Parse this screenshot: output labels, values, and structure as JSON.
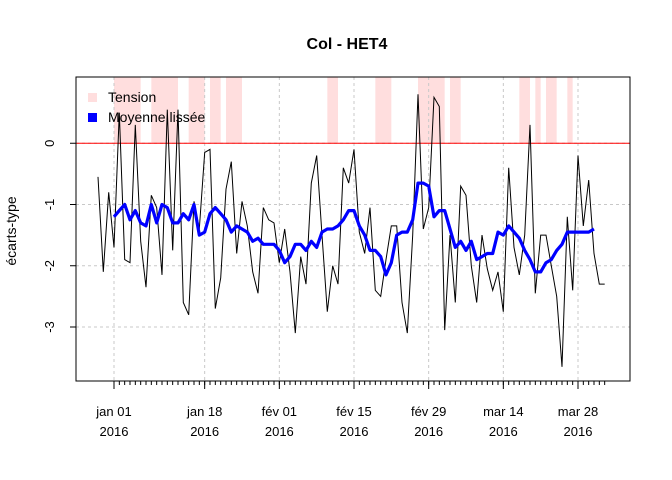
{
  "chart_data": {
    "type": "line",
    "title": "Col - HET4",
    "xlabel": "",
    "ylabel": "écarts-type",
    "x_start_date": "2015-12-29",
    "x_end_date": "2016-04-03",
    "ylim": [
      -3.8,
      1.0
    ],
    "yticks": [
      -3,
      -2,
      -1,
      0
    ],
    "xticks": [
      {
        "date": "2016-01-01",
        "line1": "jan 01",
        "line2": "2016"
      },
      {
        "date": "2016-01-18",
        "line1": "jan 18",
        "line2": "2016"
      },
      {
        "date": "2016-02-01",
        "line1": "fév 01",
        "line2": "2016"
      },
      {
        "date": "2016-02-15",
        "line1": "fév 15",
        "line2": "2016"
      },
      {
        "date": "2016-02-29",
        "line1": "fév 29",
        "line2": "2016"
      },
      {
        "date": "2016-03-14",
        "line1": "mar 14",
        "line2": "2016"
      },
      {
        "date": "2016-03-28",
        "line1": "mar 28",
        "line2": "2016"
      }
    ],
    "grid": true,
    "reference_line": {
      "y": 0,
      "color": "#ff0000"
    },
    "legend": {
      "position": "top-left",
      "entries": [
        {
          "label": "Tension",
          "color": "#ffdede"
        },
        {
          "label": "Moyenne lissée",
          "color": "#0000ff"
        }
      ]
    },
    "tension_intervals": [
      [
        "2016-01-01",
        "2016-01-06"
      ],
      [
        "2016-01-08",
        "2016-01-13"
      ],
      [
        "2016-01-15",
        "2016-01-18"
      ],
      [
        "2016-01-19",
        "2016-01-21"
      ],
      [
        "2016-01-22",
        "2016-01-25"
      ],
      [
        "2016-02-10",
        "2016-02-12"
      ],
      [
        "2016-02-19",
        "2016-02-22"
      ],
      [
        "2016-02-27",
        "2016-03-03"
      ],
      [
        "2016-03-04",
        "2016-03-06"
      ],
      [
        "2016-03-17",
        "2016-03-19"
      ],
      [
        "2016-03-20",
        "2016-03-21"
      ],
      [
        "2016-03-22",
        "2016-03-24"
      ],
      [
        "2016-03-26",
        "2016-03-27"
      ]
    ],
    "series": [
      {
        "key": "raw",
        "color": "#000000",
        "width": 1,
        "dates": [
          "2015-12-29",
          "2015-12-30",
          "2015-12-31",
          "2016-01-01",
          "2016-01-02",
          "2016-01-03",
          "2016-01-04",
          "2016-01-05",
          "2016-01-06",
          "2016-01-07",
          "2016-01-08",
          "2016-01-09",
          "2016-01-10",
          "2016-01-11",
          "2016-01-12",
          "2016-01-13",
          "2016-01-14",
          "2016-01-15",
          "2016-01-16",
          "2016-01-17",
          "2016-01-18",
          "2016-01-19",
          "2016-01-20",
          "2016-01-21",
          "2016-01-22",
          "2016-01-23",
          "2016-01-24",
          "2016-01-25",
          "2016-01-26",
          "2016-01-27",
          "2016-01-28",
          "2016-01-29",
          "2016-01-30",
          "2016-01-31",
          "2016-02-01",
          "2016-02-02",
          "2016-02-03",
          "2016-02-04",
          "2016-02-05",
          "2016-02-06",
          "2016-02-07",
          "2016-02-08",
          "2016-02-09",
          "2016-02-10",
          "2016-02-11",
          "2016-02-12",
          "2016-02-13",
          "2016-02-14",
          "2016-02-15",
          "2016-02-16",
          "2016-02-17",
          "2016-02-18",
          "2016-02-19",
          "2016-02-20",
          "2016-02-21",
          "2016-02-22",
          "2016-02-23",
          "2016-02-24",
          "2016-02-25",
          "2016-02-26",
          "2016-02-27",
          "2016-02-28",
          "2016-02-29",
          "2016-03-01",
          "2016-03-02",
          "2016-03-03",
          "2016-03-04",
          "2016-03-05",
          "2016-03-06",
          "2016-03-07",
          "2016-03-08",
          "2016-03-09",
          "2016-03-10",
          "2016-03-11",
          "2016-03-12",
          "2016-03-13",
          "2016-03-14",
          "2016-03-15",
          "2016-03-16",
          "2016-03-17",
          "2016-03-18",
          "2016-03-19",
          "2016-03-20",
          "2016-03-21",
          "2016-03-22",
          "2016-03-23",
          "2016-03-24",
          "2016-03-25",
          "2016-03-26",
          "2016-03-27",
          "2016-03-28",
          "2016-03-29",
          "2016-03-30",
          "2016-03-31",
          "2016-04-01",
          "2016-04-02"
        ],
        "values": [
          -0.55,
          -2.1,
          -0.8,
          -1.7,
          0.5,
          -1.9,
          -1.95,
          0.3,
          -1.6,
          -2.35,
          -0.85,
          -1.05,
          -2.15,
          0.55,
          -1.75,
          0.55,
          -2.6,
          -2.8,
          -0.95,
          -1.4,
          -0.15,
          -0.1,
          -2.7,
          -2.2,
          -0.75,
          -0.3,
          -1.8,
          -0.95,
          -1.35,
          -2.1,
          -2.45,
          -1.05,
          -1.25,
          -1.3,
          -1.95,
          -1.4,
          -2.1,
          -3.1,
          -1.85,
          -2.3,
          -0.65,
          -0.2,
          -1.5,
          -2.75,
          -2.0,
          -2.3,
          -0.4,
          -0.65,
          -0.1,
          -1.45,
          -1.8,
          -1.05,
          -2.4,
          -2.5,
          -1.9,
          -1.35,
          -1.35,
          -2.6,
          -3.1,
          -1.5,
          0.8,
          -1.4,
          -1.05,
          0.75,
          0.6,
          -3.05,
          -1.5,
          -2.6,
          -0.7,
          -0.85,
          -2.0,
          -2.6,
          -1.5,
          -2.05,
          -2.4,
          -2.1,
          -2.75,
          -0.4,
          -1.7,
          -2.15,
          -1.5,
          0.3,
          -2.45,
          -1.5,
          -1.5,
          -2.0,
          -2.5,
          -3.65,
          -1.2,
          -2.4,
          -0.2,
          -1.35,
          -0.6,
          -1.8,
          -2.3,
          -2.3
        ]
      },
      {
        "key": "smooth",
        "name": "Moyenne lissée",
        "color": "#0000ff",
        "width": 3,
        "dates": [
          "2016-01-01",
          "2016-01-02",
          "2016-01-03",
          "2016-01-04",
          "2016-01-05",
          "2016-01-06",
          "2016-01-07",
          "2016-01-08",
          "2016-01-09",
          "2016-01-10",
          "2016-01-11",
          "2016-01-12",
          "2016-01-13",
          "2016-01-14",
          "2016-01-15",
          "2016-01-16",
          "2016-01-17",
          "2016-01-18",
          "2016-01-19",
          "2016-01-20",
          "2016-01-21",
          "2016-01-22",
          "2016-01-23",
          "2016-01-24",
          "2016-01-25",
          "2016-01-26",
          "2016-01-27",
          "2016-01-28",
          "2016-01-29",
          "2016-01-30",
          "2016-01-31",
          "2016-02-01",
          "2016-02-02",
          "2016-02-03",
          "2016-02-04",
          "2016-02-05",
          "2016-02-06",
          "2016-02-07",
          "2016-02-08",
          "2016-02-09",
          "2016-02-10",
          "2016-02-11",
          "2016-02-12",
          "2016-02-13",
          "2016-02-14",
          "2016-02-15",
          "2016-02-16",
          "2016-02-17",
          "2016-02-18",
          "2016-02-19",
          "2016-02-20",
          "2016-02-21",
          "2016-02-22",
          "2016-02-23",
          "2016-02-24",
          "2016-02-25",
          "2016-02-26",
          "2016-02-27",
          "2016-02-28",
          "2016-02-29",
          "2016-03-01",
          "2016-03-02",
          "2016-03-03",
          "2016-03-04",
          "2016-03-05",
          "2016-03-06",
          "2016-03-07",
          "2016-03-08",
          "2016-03-09",
          "2016-03-10",
          "2016-03-11",
          "2016-03-12",
          "2016-03-13",
          "2016-03-14",
          "2016-03-15",
          "2016-03-16",
          "2016-03-17",
          "2016-03-18",
          "2016-03-19",
          "2016-03-20",
          "2016-03-21",
          "2016-03-22",
          "2016-03-23",
          "2016-03-24",
          "2016-03-25",
          "2016-03-26",
          "2016-03-27",
          "2016-03-28",
          "2016-03-29",
          "2016-03-30",
          "2016-03-31"
        ],
        "values": [
          -1.2,
          -1.1,
          -1.0,
          -1.25,
          -1.1,
          -1.3,
          -1.35,
          -1.0,
          -1.3,
          -1.0,
          -1.05,
          -1.3,
          -1.3,
          -1.15,
          -1.25,
          -1.0,
          -1.5,
          -1.45,
          -1.15,
          -1.05,
          -1.15,
          -1.25,
          -1.45,
          -1.35,
          -1.4,
          -1.45,
          -1.6,
          -1.55,
          -1.65,
          -1.65,
          -1.65,
          -1.75,
          -1.95,
          -1.85,
          -1.65,
          -1.65,
          -1.75,
          -1.6,
          -1.7,
          -1.45,
          -1.4,
          -1.4,
          -1.35,
          -1.25,
          -1.1,
          -1.1,
          -1.35,
          -1.5,
          -1.75,
          -1.75,
          -1.85,
          -2.15,
          -1.95,
          -1.5,
          -1.45,
          -1.45,
          -1.25,
          -0.65,
          -0.65,
          -0.7,
          -1.2,
          -1.1,
          -1.1,
          -1.4,
          -1.7,
          -1.6,
          -1.75,
          -1.6,
          -1.9,
          -1.85,
          -1.8,
          -1.8,
          -1.45,
          -1.5,
          -1.35,
          -1.45,
          -1.55,
          -1.75,
          -1.9,
          -2.1,
          -2.1,
          -1.95,
          -1.9,
          -1.75,
          -1.65,
          -1.45,
          -1.45,
          -1.45,
          -1.45,
          -1.45,
          -1.4
        ]
      }
    ]
  }
}
